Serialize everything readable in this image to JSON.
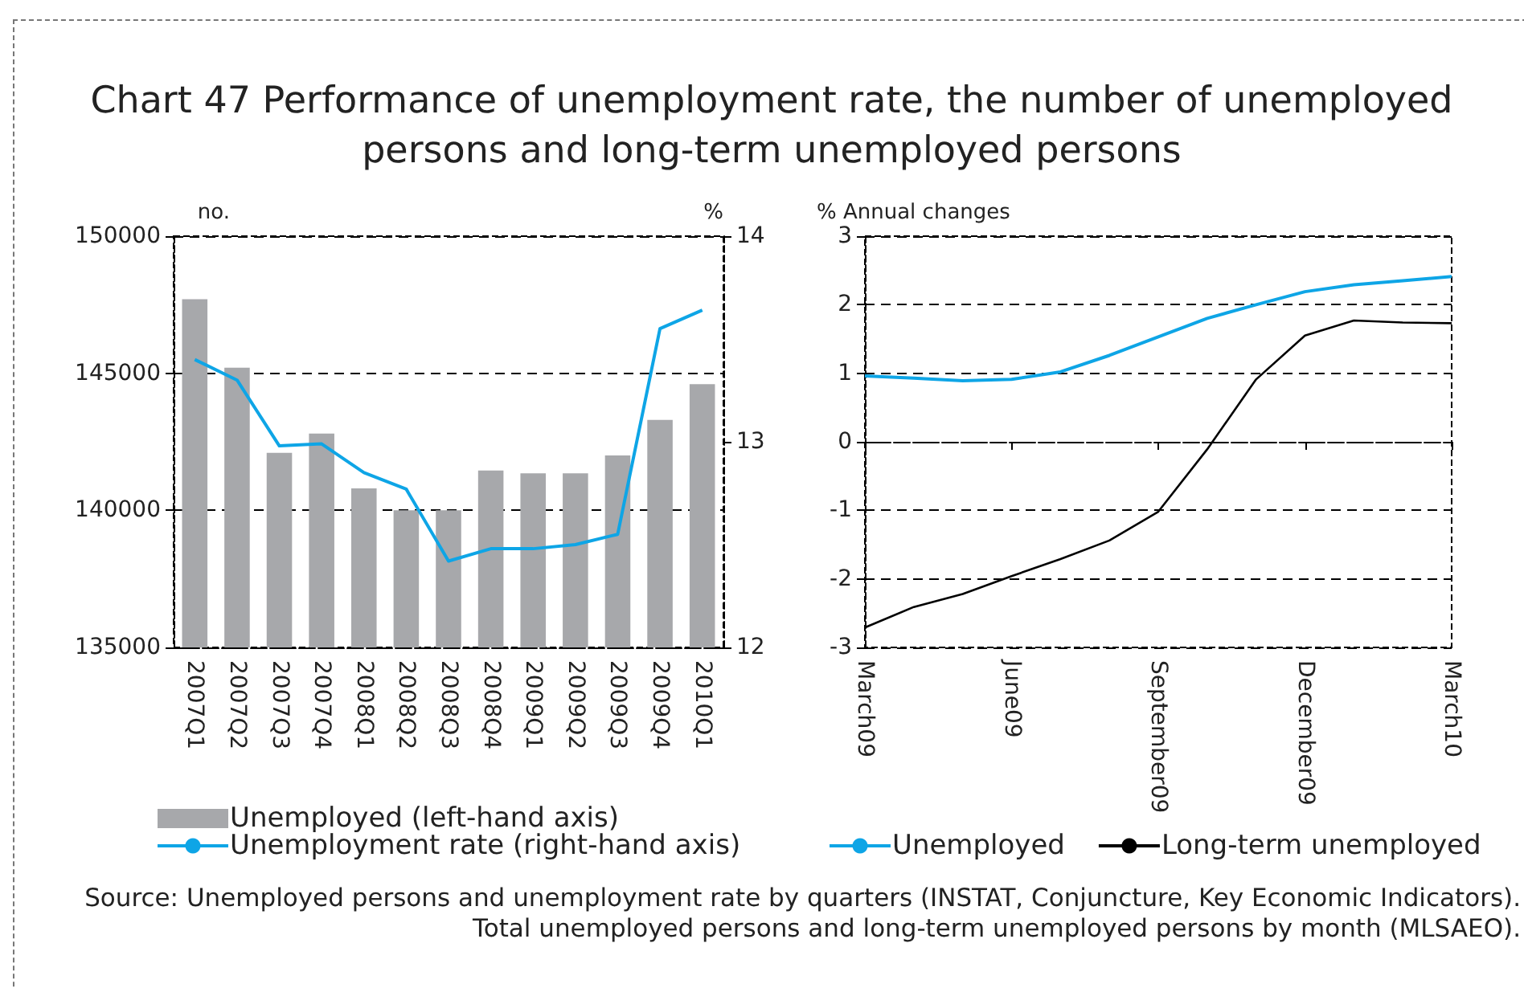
{
  "chart_data": [
    {
      "type": "bar",
      "title": "Chart 47 Performance of unemployment rate, the number of unemployed persons and long-term unemployed persons",
      "categories": [
        "2007Q1",
        "2007Q2",
        "2007Q3",
        "2007Q4",
        "2008Q1",
        "2008Q2",
        "2008Q3",
        "2008Q4",
        "2009Q1",
        "2009Q2",
        "2009Q3",
        "2009Q4",
        "2010Q1"
      ],
      "series": [
        {
          "name": "Unemployed (left-hand axis)",
          "type": "bar",
          "color": "#a7a8ab",
          "values": [
            147700,
            145200,
            142100,
            142800,
            140800,
            140000,
            140000,
            141450,
            141350,
            141350,
            142000,
            143300,
            144600
          ]
        },
        {
          "name": "Unemployment rate (right-hand axis)",
          "type": "line",
          "axis": "y2",
          "color": "#0ea5e6",
          "values": [
            13.4,
            13.3,
            12.98,
            12.99,
            12.85,
            12.77,
            12.42,
            12.48,
            12.48,
            12.5,
            12.55,
            13.55,
            13.64
          ]
        }
      ],
      "ylabel": "no.",
      "y2label": "%",
      "ylim": [
        135000,
        150000
      ],
      "yticks": [
        135000,
        140000,
        145000,
        150000
      ],
      "y2lim": [
        12,
        14
      ],
      "y2ticks": [
        12,
        13,
        14
      ],
      "grid": "y",
      "legend": "bottom",
      "marker": "none",
      "line_style": "solid",
      "annotations": [
        "Source: Unemployed persons and unemployment rate by quarters (INSTAT, Conjuncture, Key Economic Indicators).",
        "Total unemployed persons and long-term unemployed persons by month (MLSAEO)."
      ]
    },
    {
      "type": "line",
      "categories": [
        "March09",
        null,
        null,
        "June09",
        null,
        null,
        "September09",
        null,
        null,
        "December09",
        null,
        null,
        "March10"
      ],
      "series": [
        {
          "name": "Unemployed",
          "color": "#0ea5e6",
          "values": [
            0.96,
            0.93,
            0.89,
            0.91,
            1.02,
            1.26,
            1.53,
            1.8,
            2.0,
            2.19,
            2.29,
            2.35,
            2.41
          ]
        },
        {
          "name": "Long-term unemployed",
          "color": "#000000",
          "values": [
            -2.71,
            -2.41,
            -2.22,
            -1.96,
            -1.71,
            -1.44,
            -1.02,
            -0.11,
            0.91,
            1.55,
            1.77,
            1.74,
            1.73
          ]
        }
      ],
      "ylabel": "% Annual changes",
      "ylim": [
        -3,
        3
      ],
      "yticks": [
        -3,
        -2,
        -1,
        0,
        1,
        2,
        3
      ],
      "grid": "y",
      "legend": "bottom",
      "marker": "none",
      "line_style": "solid"
    }
  ]
}
